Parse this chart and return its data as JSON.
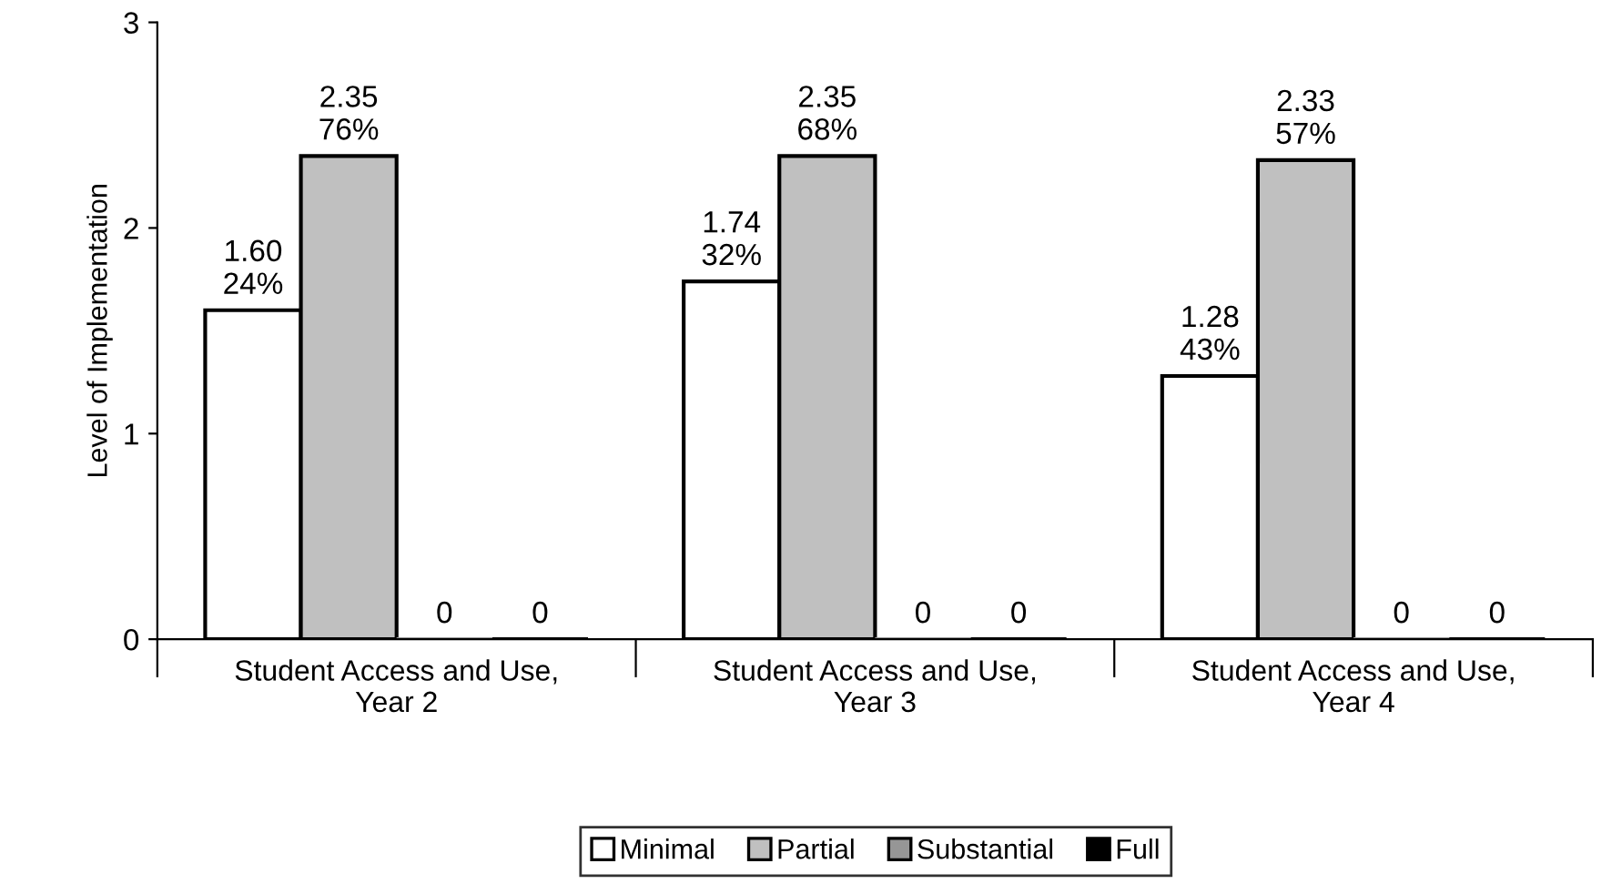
{
  "chart_data": {
    "type": "bar",
    "ylabel": "Level of Implementation",
    "categories": [
      "Student Access and Use,\nYear 2",
      "Student Access and Use,\nYear 3",
      "Student Access and Use,\nYear 4"
    ],
    "series": [
      {
        "name": "Minimal",
        "color": "#ffffff",
        "values": [
          1.6,
          1.74,
          1.28
        ],
        "value_labels": [
          "1.60\n24%",
          "1.74\n32%",
          "1.28\n43%"
        ]
      },
      {
        "name": "Partial",
        "color": "#c0c0c0",
        "values": [
          2.35,
          2.35,
          2.33
        ],
        "value_labels": [
          "2.35\n76%",
          "2.35\n68%",
          "2.33\n57%"
        ]
      },
      {
        "name": "Substantial",
        "color": "#969696",
        "values": [
          0,
          0,
          0
        ],
        "value_labels": [
          "0",
          "0",
          "0"
        ]
      },
      {
        "name": "Full",
        "color": "#000000",
        "values": [
          0,
          0,
          0
        ],
        "value_labels": [
          "0",
          "0",
          "0"
        ]
      }
    ],
    "ylim": [
      0,
      3
    ],
    "yticks": [
      0,
      1,
      2,
      3
    ],
    "grid": false,
    "legend": "bottom"
  }
}
